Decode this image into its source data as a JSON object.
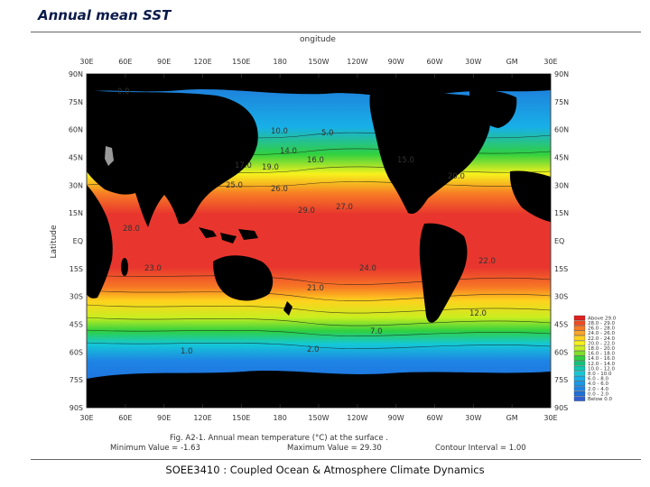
{
  "slide": {
    "title": "Annual mean SST",
    "footer": "SOEE3410 : Coupled Ocean & Atmosphere Climate Dynamics"
  },
  "figure": {
    "top_axis_label": "ongitude",
    "left_axis_label": "Latitude",
    "caption": "Fig. A2-1.  Annual mean temperature (°C) at the surface .",
    "min_label": "Minimum Value = -1.63",
    "max_label": "Maximum Value = 29.30",
    "interval_label": "Contour Interval = 1.00",
    "lon_ticks_top": [
      "30E",
      "60E",
      "90E",
      "120E",
      "150E",
      "180",
      "150W",
      "120W",
      "90W",
      "60W",
      "30W",
      "GM",
      "30E"
    ],
    "lon_ticks_bottom": [
      "30E",
      "60E",
      "90E",
      "120E",
      "150E",
      "180",
      "150W",
      "120W",
      "90W",
      "60W",
      "30W",
      "GM",
      "30E"
    ],
    "lat_ticks_left": [
      "90N",
      "75N",
      "60N",
      "45N",
      "30N",
      "15N",
      "EQ",
      "15S",
      "30S",
      "45S",
      "60S",
      "75S",
      "90S"
    ],
    "lat_ticks_right": [
      "90N",
      "75N",
      "60N",
      "45N",
      "30N",
      "15N",
      "EQ",
      "15S",
      "30S",
      "45S",
      "60S",
      "75S",
      "90S"
    ],
    "contour_labels": [
      "28.0",
      "29.0",
      "27.0",
      "26.0",
      "25.0",
      "24.0",
      "23.0",
      "22.0",
      "21.0",
      "20.0",
      "19.0",
      "17.0",
      "16.0",
      "15.0",
      "14.0",
      "12.0",
      "10.0",
      "7.0",
      "5.0",
      "2.0",
      "1.0",
      "0.0"
    ],
    "colors": {
      "land": "#000000",
      "water_warm": "#e8362e",
      "water_cold": "#1e7fe0"
    },
    "legend": [
      {
        "label": "Above 29.0",
        "color": "#e02020"
      },
      {
        "label": "28.0 - 29.0",
        "color": "#f04a22"
      },
      {
        "label": "26.0 - 28.0",
        "color": "#f77a25"
      },
      {
        "label": "24.0 - 26.0",
        "color": "#faa52a"
      },
      {
        "label": "22.0 - 24.0",
        "color": "#ffd21e"
      },
      {
        "label": "20.0 - 22.0",
        "color": "#f7f21c"
      },
      {
        "label": "18.0 - 20.0",
        "color": "#c8ee1f"
      },
      {
        "label": "16.0 - 18.0",
        "color": "#7fe02a"
      },
      {
        "label": "14.0 - 16.0",
        "color": "#30d040"
      },
      {
        "label": "12.0 - 14.0",
        "color": "#10c27a"
      },
      {
        "label": "10.0 - 12.0",
        "color": "#10c8b0"
      },
      {
        "label": "8.0 - 10.0",
        "color": "#14c8d8"
      },
      {
        "label": "6.0 - 8.0",
        "color": "#18b0e8"
      },
      {
        "label": "4.0 - 6.0",
        "color": "#1a98ea"
      },
      {
        "label": "2.0 - 4.0",
        "color": "#1e84e4"
      },
      {
        "label": "0.0 - 2.0",
        "color": "#2070d8"
      },
      {
        "label": "Below 0.0",
        "color": "#3060d0"
      }
    ]
  }
}
